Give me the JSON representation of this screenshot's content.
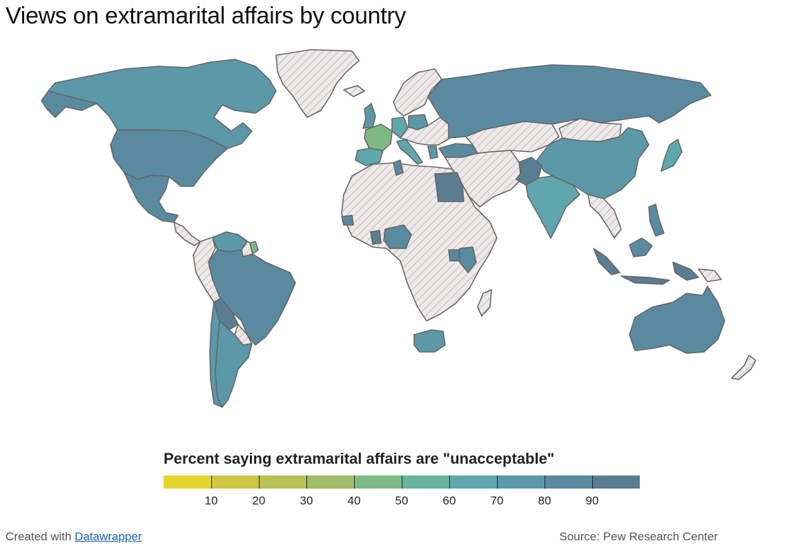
{
  "title": "Views on extramarital affairs by country",
  "legend": {
    "title": "Percent saying extramarital affairs are \"unacceptable\"",
    "tick_labels": [
      "10",
      "20",
      "30",
      "40",
      "50",
      "60",
      "70",
      "80",
      "90"
    ],
    "colors": [
      "#e3d52c",
      "#cdc743",
      "#b7c155",
      "#9fbc69",
      "#7dba83",
      "#67b39a",
      "#5fa7ad",
      "#5b98a8",
      "#5a8a9f",
      "#5a7d91"
    ]
  },
  "colors": {
    "no_data_fill": "#efeaea",
    "no_data_hatch": "#cfc8c8",
    "ocean": "#ffffff",
    "border": "#666666"
  },
  "map": {
    "countries": [
      {
        "name": "Canada",
        "value": 75
      },
      {
        "name": "United States",
        "value": 84
      },
      {
        "name": "Mexico",
        "value": 80
      },
      {
        "name": "Venezuela",
        "value": 74
      },
      {
        "name": "Brazil",
        "value": 88
      },
      {
        "name": "Bolivia",
        "value": 90
      },
      {
        "name": "Chile",
        "value": 76
      },
      {
        "name": "Argentina",
        "value": 76
      },
      {
        "name": "French Guiana",
        "value": 47
      },
      {
        "name": "United Kingdom",
        "value": 76
      },
      {
        "name": "France",
        "value": 47
      },
      {
        "name": "Spain",
        "value": 64
      },
      {
        "name": "Germany",
        "value": 60
      },
      {
        "name": "Italy",
        "value": 64
      },
      {
        "name": "Poland",
        "value": 75
      },
      {
        "name": "Russia",
        "value": 82
      },
      {
        "name": "Turkey",
        "value": 89
      },
      {
        "name": "Greece",
        "value": 78
      },
      {
        "name": "Egypt",
        "value": 95
      },
      {
        "name": "Tunisia",
        "value": 85
      },
      {
        "name": "Pakistan",
        "value": 94
      },
      {
        "name": "India",
        "value": 68
      },
      {
        "name": "China",
        "value": 74
      },
      {
        "name": "Japan",
        "value": 69
      },
      {
        "name": "Indonesia",
        "value": 93
      },
      {
        "name": "Malaysia",
        "value": 88
      },
      {
        "name": "Philippines",
        "value": 88
      },
      {
        "name": "Australia",
        "value": 80
      },
      {
        "name": "Nigeria",
        "value": 85
      },
      {
        "name": "Senegal",
        "value": 89
      },
      {
        "name": "Ghana",
        "value": 90
      },
      {
        "name": "Kenya",
        "value": 85
      },
      {
        "name": "Uganda",
        "value": 82
      },
      {
        "name": "South Africa",
        "value": 71
      }
    ]
  },
  "footer": {
    "created_prefix": "Created with",
    "created_link": "Datawrapper",
    "source": "Source: Pew Research Center"
  }
}
